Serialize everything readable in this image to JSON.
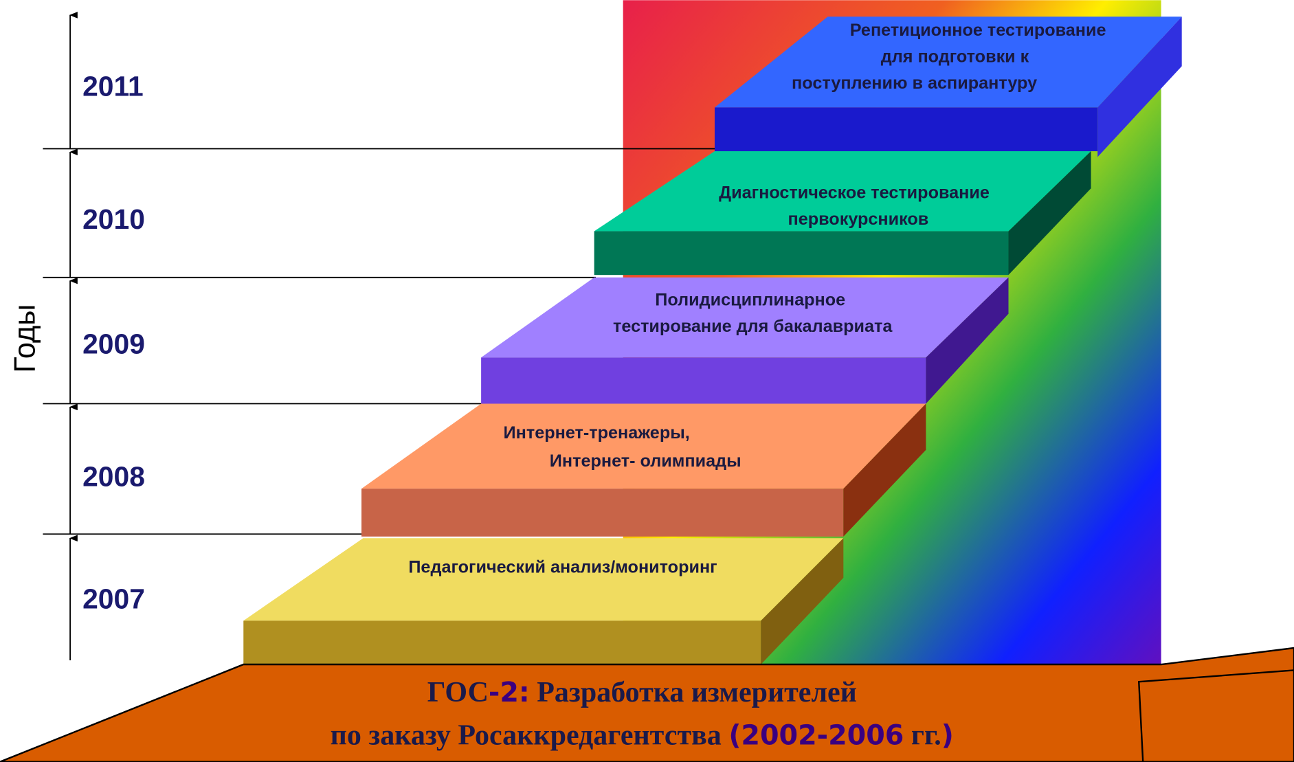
{
  "axis_label": "Годы",
  "years": [
    "2011",
    "2010",
    "2009",
    "2008",
    "2007"
  ],
  "steps": [
    {
      "lines": [
        "Репетиционное тестирование",
        "для подготовки к",
        "поступлению в аспирантуру"
      ]
    },
    {
      "lines": [
        "Диагностическое тестирование",
        "первокурсников"
      ]
    },
    {
      "lines": [
        "Полидисциплинарное",
        "тестирование для бакалавриата"
      ]
    },
    {
      "lines": [
        "Интернет-тренажеры,",
        "Интернет- олимпиады"
      ]
    },
    {
      "lines": [
        "Педагогический анализ/мониторинг"
      ]
    }
  ],
  "base": {
    "line1": [
      "ГОС",
      "-2:",
      " Разработка измерителей"
    ],
    "line2": [
      "по заказу Росаккредагентства ",
      "(2002-2006",
      " гг.",
      ")"
    ]
  }
}
